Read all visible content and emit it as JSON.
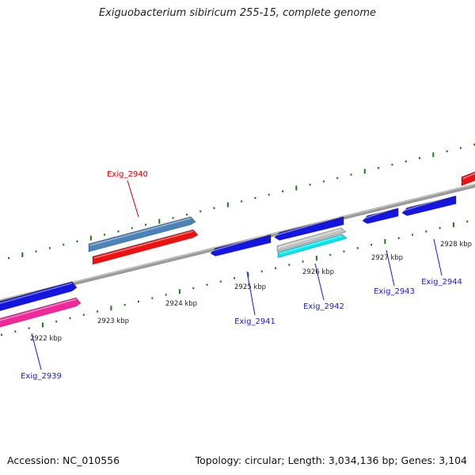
{
  "title": "Exiguobacterium sibiricum 255-15, complete genome",
  "footer": {
    "accession": "Accession: NC_010556",
    "summary": "Topology: circular; Length: 3,034,136 bp; Genes: 3,104"
  },
  "colors": {
    "backbone": "#8a8a8a",
    "tick": "#1a7a1a",
    "gene_blue": "#1515e0",
    "gene_red": "#ee1111",
    "gene_steel": "#4b82b8",
    "gene_pink": "#f0289a",
    "gene_cyan": "#00e8f0",
    "gene_gray": "#c4c4c4",
    "label_blue": "#1a1ad0",
    "label_red": "#cc0000"
  },
  "scale_labels": [
    "2922 kbp",
    "2923 kbp",
    "2924 kbp",
    "2925 kbp",
    "2926 kbp",
    "2927 kbp",
    "2928 kbp"
  ],
  "gene_labels": [
    {
      "id": "Exig_2940",
      "color": "red"
    },
    {
      "id": "Exig_2939",
      "color": "blue"
    },
    {
      "id": "Exig_2941",
      "color": "blue"
    },
    {
      "id": "Exig_2942",
      "color": "blue"
    },
    {
      "id": "Exig_2943",
      "color": "blue"
    },
    {
      "id": "Exig_2944",
      "color": "blue"
    }
  ]
}
